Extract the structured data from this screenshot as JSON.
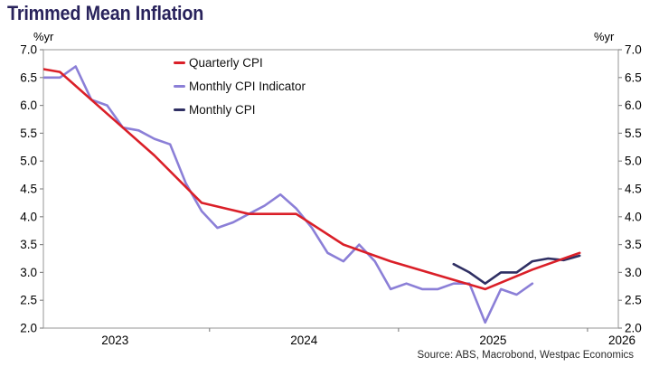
{
  "title": "Trimmed Mean Inflation",
  "axis_unit_left": "%yr",
  "axis_unit_right": "%yr",
  "source": "Source: ABS, Macrobond, Westpac Economics",
  "colors": {
    "title": "#29235c",
    "axis_border": "#a7a7a7",
    "tick": "#8a8a8a",
    "tick_text": "#000000",
    "quarterly_cpi": "#da1f28",
    "monthly_cpi_indicator": "#8b7fd7",
    "monthly_cpi": "#2f2f63"
  },
  "chart_data": {
    "type": "line",
    "title": "Trimmed Mean Inflation",
    "ylabel": "%yr",
    "ylim": [
      2.0,
      7.0
    ],
    "ytick_step": 0.5,
    "ytick_labels": [
      "2.0",
      "2.5",
      "3.0",
      "3.5",
      "4.0",
      "4.5",
      "5.0",
      "5.5",
      "6.0",
      "6.5",
      "7.0"
    ],
    "x_axis_years": [
      "2023",
      "2024",
      "2025",
      "2026"
    ],
    "x_year_ticks": [
      2024,
      2025,
      2026
    ],
    "x_start": 2023.121,
    "x_end": 2026.163,
    "grid": false,
    "legend_position": "top-center",
    "series": [
      {
        "name": "Quarterly CPI",
        "color": "#da1f28",
        "frequency": "quarterly",
        "points": [
          [
            "2023-02",
            6.65
          ],
          [
            "2023-03",
            6.6
          ],
          [
            "2023-06",
            5.85
          ],
          [
            "2023-09",
            5.1
          ],
          [
            "2023-12",
            4.25
          ],
          [
            "2024-03",
            4.05
          ],
          [
            "2024-06",
            4.05
          ],
          [
            "2024-09",
            3.5
          ],
          [
            "2024-12",
            3.2
          ],
          [
            "2025-03",
            2.95
          ],
          [
            "2025-06",
            2.7
          ],
          [
            "2025-09",
            3.05
          ],
          [
            "2025-12",
            3.35
          ]
        ]
      },
      {
        "name": "Monthly CPI Indicator",
        "color": "#8b7fd7",
        "frequency": "monthly",
        "start": "2023-02",
        "monthly_values": [
          6.5,
          6.5,
          6.7,
          6.1,
          6.0,
          5.6,
          5.55,
          5.4,
          5.3,
          4.6,
          4.1,
          3.8,
          3.9,
          4.05,
          4.2,
          4.4,
          4.15,
          3.8,
          3.35,
          3.2,
          3.5,
          3.2,
          2.7,
          2.8,
          2.7,
          2.7,
          2.8,
          2.8,
          2.1,
          2.7,
          2.6,
          2.8
        ]
      },
      {
        "name": "Monthly CPI",
        "color": "#2f2f63",
        "frequency": "monthly",
        "start": "2025-04",
        "monthly_values": [
          3.15,
          3.0,
          2.8,
          3.0,
          3.0,
          3.2,
          3.25,
          3.22,
          3.3
        ]
      }
    ]
  }
}
